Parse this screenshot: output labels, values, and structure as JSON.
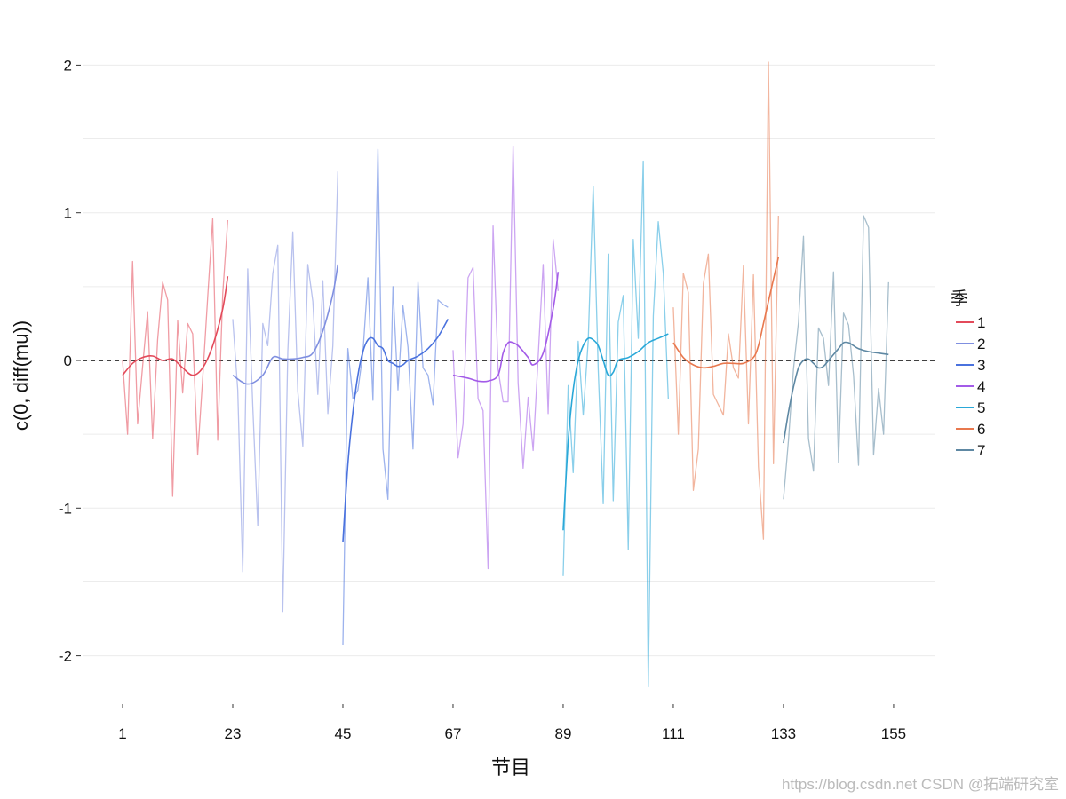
{
  "chart_data": {
    "type": "line",
    "title": "",
    "xlabel": "节目",
    "ylabel": "c(0, diff(mu))",
    "xlim": [
      -6,
      165
    ],
    "ylim": [
      -2.4,
      2.4
    ],
    "x_ticks": [
      1,
      23,
      45,
      67,
      89,
      111,
      133,
      155
    ],
    "y_ticks": [
      -2,
      -1,
      0,
      1,
      2
    ],
    "reference_line": {
      "y": 0,
      "style": "dashed"
    },
    "grid": true,
    "legend": {
      "title": "季",
      "position": "right"
    },
    "series": [
      {
        "name": "1",
        "color": "#E34A5A",
        "x": [
          1,
          2,
          3,
          4,
          5,
          6,
          7,
          8,
          9,
          10,
          11,
          12,
          13,
          14,
          15,
          16,
          17,
          18,
          19,
          20,
          21,
          22
        ],
        "values": [
          0,
          -0.5,
          0.67,
          -0.43,
          -0.04,
          0.33,
          -0.53,
          0.14,
          0.53,
          0.41,
          -0.92,
          0.27,
          -0.22,
          0.25,
          0.18,
          -0.64,
          -0.12,
          0.43,
          0.96,
          -0.54,
          0.45,
          0.95
        ],
        "smooth_x": [
          1,
          3,
          5,
          7,
          9,
          11,
          13,
          15,
          17,
          19,
          21,
          22
        ],
        "smooth_values": [
          -0.1,
          -0.02,
          0.02,
          0.03,
          0.0,
          0.01,
          -0.05,
          -0.1,
          -0.05,
          0.1,
          0.35,
          0.57
        ]
      },
      {
        "name": "2",
        "color": "#7F8FE0",
        "x": [
          23,
          24,
          25,
          26,
          27,
          28,
          29,
          30,
          31,
          32,
          33,
          34,
          35,
          36,
          37,
          38,
          39,
          40,
          41,
          42,
          43,
          44
        ],
        "values": [
          0.28,
          -0.2,
          -1.43,
          0.62,
          -0.31,
          -1.12,
          0.25,
          0.1,
          0.59,
          0.78,
          -1.7,
          0.06,
          0.87,
          -0.21,
          -0.58,
          0.65,
          0.4,
          -0.23,
          0.54,
          -0.36,
          0.1,
          1.28
        ],
        "smooth_x": [
          23,
          26,
          29,
          31,
          33,
          35,
          37,
          39,
          41,
          43,
          44
        ],
        "smooth_values": [
          -0.1,
          -0.16,
          -0.1,
          0.02,
          0.01,
          0.01,
          0.02,
          0.05,
          0.2,
          0.45,
          0.65
        ]
      },
      {
        "name": "3",
        "color": "#4A72DE",
        "x": [
          45,
          46,
          47,
          48,
          49,
          50,
          51,
          52,
          53,
          54,
          55,
          56,
          57,
          58,
          59,
          60,
          61,
          62,
          63,
          64,
          65,
          66
        ],
        "values": [
          -1.93,
          0.08,
          -0.26,
          -0.2,
          0.05,
          0.56,
          -0.27,
          1.43,
          -0.6,
          -0.94,
          0.5,
          -0.2,
          0.37,
          0.09,
          -0.6,
          0.53,
          -0.05,
          -0.1,
          -0.3,
          0.41,
          0.38,
          0.36
        ],
        "smooth_x": [
          45,
          46,
          47,
          48,
          49,
          50,
          51,
          52,
          53,
          54,
          55,
          56,
          57,
          58,
          60,
          62,
          64,
          66
        ],
        "smooth_values": [
          -1.23,
          -0.7,
          -0.35,
          -0.1,
          0.06,
          0.14,
          0.15,
          0.1,
          0.08,
          0.0,
          -0.02,
          -0.04,
          -0.03,
          0.0,
          0.03,
          0.08,
          0.16,
          0.28
        ]
      },
      {
        "name": "4",
        "color": "#A35BE8",
        "x": [
          67,
          68,
          69,
          70,
          71,
          72,
          73,
          74,
          75,
          76,
          77,
          78,
          79,
          80,
          81,
          82,
          83,
          84,
          85,
          86,
          87,
          88
        ],
        "values": [
          0.07,
          -0.66,
          -0.43,
          0.56,
          0.63,
          -0.26,
          -0.34,
          -1.41,
          0.91,
          -0.06,
          -0.28,
          -0.28,
          1.45,
          -0.15,
          -0.73,
          -0.25,
          -0.61,
          0.02,
          0.65,
          -0.36,
          0.82,
          0.47
        ],
        "smooth_x": [
          67,
          70,
          72,
          74,
          76,
          77,
          78,
          79,
          80,
          82,
          83,
          85,
          87,
          88
        ],
        "smooth_values": [
          -0.1,
          -0.12,
          -0.14,
          -0.14,
          -0.1,
          0.05,
          0.12,
          0.12,
          0.1,
          0.02,
          -0.03,
          0.05,
          0.35,
          0.6
        ]
      },
      {
        "name": "5",
        "color": "#2AA8D8",
        "x": [
          89,
          90,
          91,
          92,
          93,
          94,
          95,
          96,
          97,
          98,
          99,
          100,
          101,
          102,
          103,
          104,
          105,
          106,
          107,
          108,
          109,
          110
        ],
        "values": [
          -1.46,
          -0.17,
          -0.76,
          0.13,
          -0.37,
          0.13,
          1.18,
          -0.06,
          -0.97,
          0.72,
          -0.95,
          0.26,
          0.44,
          -1.28,
          0.82,
          0.15,
          1.35,
          -2.21,
          0.3,
          0.94,
          0.59,
          -0.26
        ],
        "smooth_x": [
          89,
          90,
          91,
          92,
          93,
          94,
          95,
          96,
          97,
          98,
          99,
          100,
          102,
          104,
          106,
          108,
          110
        ],
        "smooth_values": [
          -1.15,
          -0.55,
          -0.2,
          0.0,
          0.1,
          0.15,
          0.14,
          0.1,
          0.0,
          -0.1,
          -0.08,
          0.0,
          0.02,
          0.06,
          0.12,
          0.15,
          0.18
        ]
      },
      {
        "name": "6",
        "color": "#E8784E",
        "x": [
          111,
          112,
          113,
          114,
          115,
          116,
          117,
          118,
          119,
          120,
          121,
          122,
          123,
          124,
          125,
          126,
          127,
          128,
          129,
          130,
          131,
          132
        ],
        "values": [
          0.36,
          -0.5,
          0.59,
          0.46,
          -0.88,
          -0.6,
          0.52,
          0.72,
          -0.23,
          -0.3,
          -0.37,
          0.18,
          -0.05,
          -0.12,
          0.64,
          -0.43,
          0.58,
          -0.72,
          -1.21,
          2.02,
          -0.7,
          0.98
        ],
        "smooth_x": [
          111,
          113,
          115,
          117,
          119,
          121,
          123,
          125,
          127,
          128,
          129,
          130,
          131,
          132
        ],
        "smooth_values": [
          0.12,
          0.02,
          -0.03,
          -0.05,
          -0.04,
          -0.02,
          -0.02,
          -0.02,
          0.02,
          0.1,
          0.25,
          0.4,
          0.55,
          0.7
        ]
      },
      {
        "name": "7",
        "color": "#5E88A3",
        "x": [
          133,
          134,
          135,
          136,
          137,
          138,
          139,
          140,
          141,
          142,
          143,
          144,
          145,
          146,
          147,
          148,
          149,
          150,
          151,
          152,
          153,
          154
        ],
        "values": [
          -0.94,
          -0.54,
          -0.06,
          0.26,
          0.84,
          -0.53,
          -0.75,
          0.22,
          0.15,
          -0.17,
          0.6,
          -0.69,
          0.32,
          0.24,
          -0.1,
          -0.71,
          0.98,
          0.9,
          -0.64,
          -0.19,
          -0.5,
          0.53
        ],
        "smooth_x": [
          133,
          134,
          135,
          136,
          137,
          138,
          139,
          140,
          141,
          142,
          143,
          144,
          145,
          146,
          147,
          148,
          150,
          152,
          154
        ],
        "smooth_values": [
          -0.56,
          -0.35,
          -0.18,
          -0.05,
          0.0,
          0.01,
          -0.02,
          -0.05,
          -0.04,
          0.0,
          0.04,
          0.08,
          0.12,
          0.12,
          0.1,
          0.08,
          0.06,
          0.05,
          0.04
        ]
      }
    ],
    "watermark": "https://blog.csdn.net CSDN @拓端研究室"
  }
}
